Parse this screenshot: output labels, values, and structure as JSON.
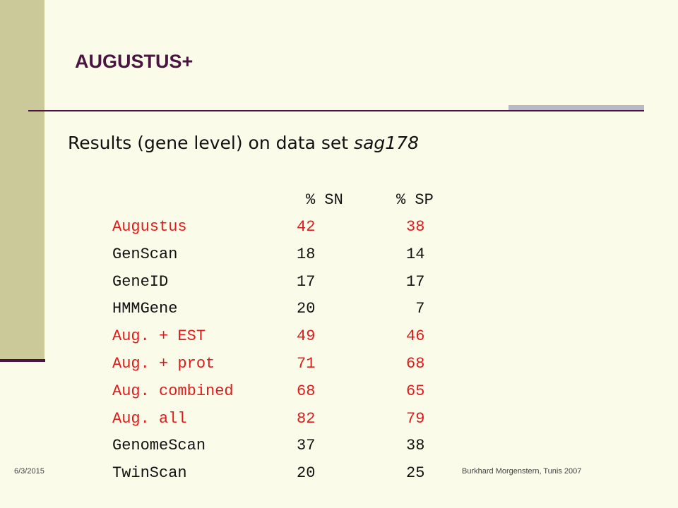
{
  "title": "AUGUSTUS+",
  "subtitle": {
    "text": "Results (gene level) on data set ",
    "dataset": "sag178"
  },
  "table": {
    "headers": [
      "% SN",
      "% SP"
    ],
    "rows": [
      {
        "name": "Augustus",
        "sn": "42",
        "sp": "38",
        "highlight": true
      },
      {
        "name": "GenScan",
        "sn": "18",
        "sp": "14",
        "highlight": false
      },
      {
        "name": "GeneID",
        "sn": "17",
        "sp": "17",
        "highlight": false
      },
      {
        "name": "HMMGene",
        "sn": "20",
        "sp": " 7",
        "highlight": false
      },
      {
        "name": "Aug. + EST",
        "sn": "49",
        "sp": "46",
        "highlight": true
      },
      {
        "name": "Aug. + prot",
        "sn": "71",
        "sp": "68",
        "highlight": true
      },
      {
        "name": "Aug. combined",
        "sn": "68",
        "sp": "65",
        "highlight": true
      },
      {
        "name": "Aug. all",
        "sn": "82",
        "sp": "79",
        "highlight": true
      },
      {
        "name": "GenomeScan",
        "sn": "37",
        "sp": "38",
        "highlight": false
      },
      {
        "name": "TwinScan",
        "sn": "20",
        "sp": "25",
        "highlight": false
      }
    ]
  },
  "footer": {
    "date": "6/3/2015",
    "author": "Burkhard Morgenstern, Tunis 2007"
  },
  "colors": {
    "highlight": "#e11b1b",
    "accent": "#4a1540",
    "sidebar": "#cbc99a"
  }
}
